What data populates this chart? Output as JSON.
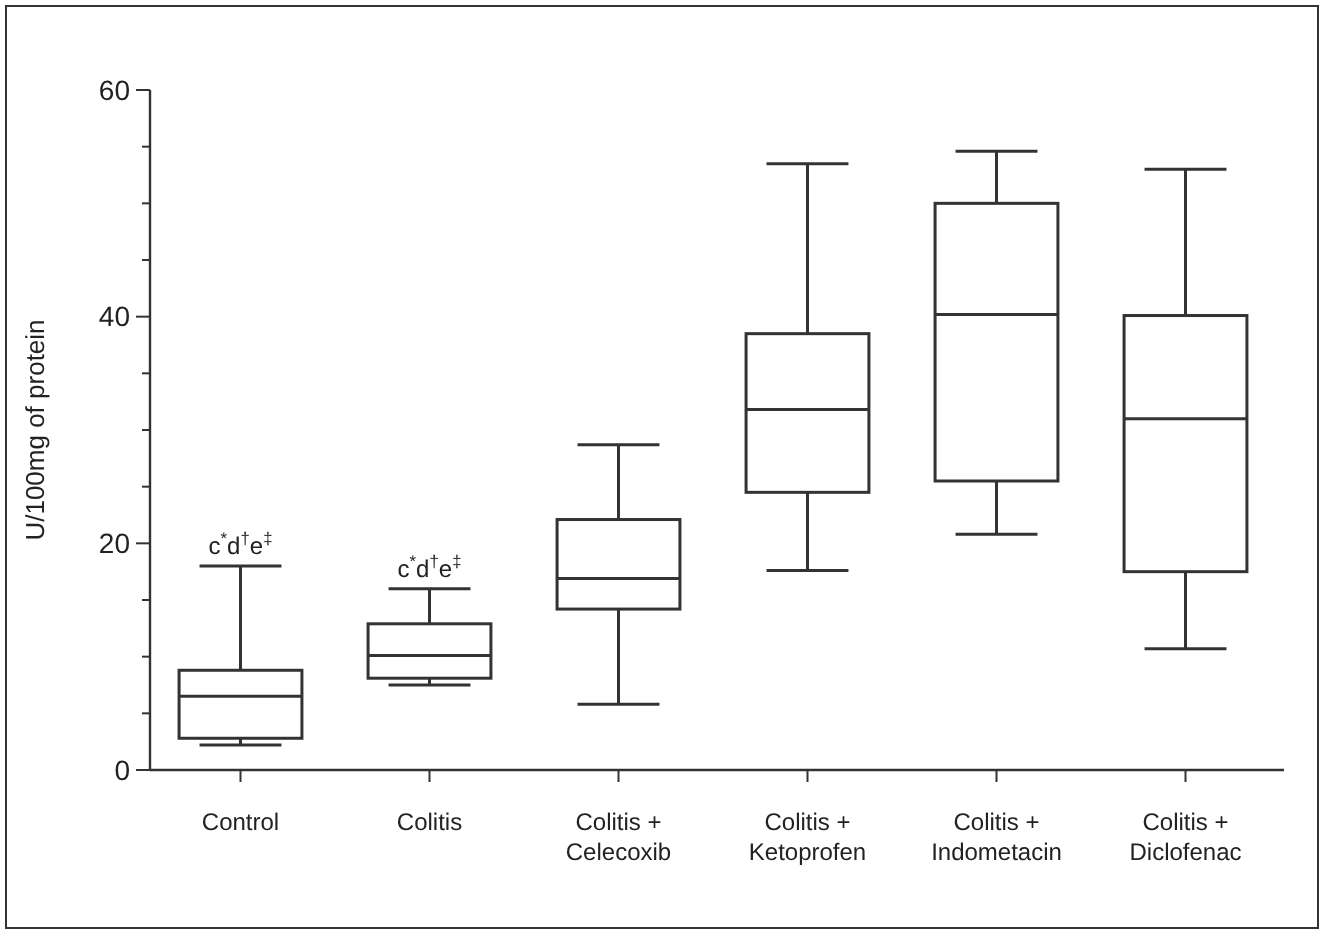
{
  "chart_data": {
    "type": "box",
    "ylabel": "U/100mg of protein",
    "categories": [
      "Control",
      "Colitis",
      "Colitis + Celecoxib",
      "Colitis + Ketoprofen",
      "Colitis + Indometacin",
      "Colitis + Diclofenac"
    ],
    "boxes": [
      {
        "low": 2.2,
        "q1": 2.8,
        "median": 6.5,
        "q3": 8.8,
        "high": 18
      },
      {
        "low": 7.5,
        "q1": 8.1,
        "median": 10.1,
        "q3": 12.9,
        "high": 16
      },
      {
        "low": 5.8,
        "q1": 14.2,
        "median": 16.9,
        "q3": 22.1,
        "high": 28.7
      },
      {
        "low": 17.6,
        "q1": 24.5,
        "median": 31.8,
        "q3": 38.5,
        "high": 53.5
      },
      {
        "low": 20.8,
        "q1": 25.5,
        "median": 40.2,
        "q3": 50,
        "high": 54.6
      },
      {
        "low": 10.7,
        "q1": 17.5,
        "median": 31,
        "q3": 40.1,
        "high": 53
      }
    ],
    "color": "#333333",
    "ylim": [
      0,
      60
    ],
    "yticks": [
      0,
      {
        "value": 5,
        "label": null
      },
      {
        "value": 10,
        "label": null
      },
      {
        "value": 15,
        "label": null
      },
      20,
      {
        "value": 25,
        "label": null
      },
      {
        "value": 30,
        "label": null
      },
      {
        "value": 35,
        "label": null
      },
      40,
      {
        "value": 45,
        "label": null
      },
      {
        "value": 50,
        "label": null
      },
      {
        "value": 55,
        "label": null
      },
      60
    ],
    "annotations": [
      {
        "text": "c$^{*}$d$^{†}$e$^{‡}$",
        "x": "Control",
        "y": 18
      },
      {
        "text": "c$^{*}$d$^{†}$e$^{‡}$",
        "x": "Colitis",
        "y": 16
      }
    ],
    "grid": false
  }
}
